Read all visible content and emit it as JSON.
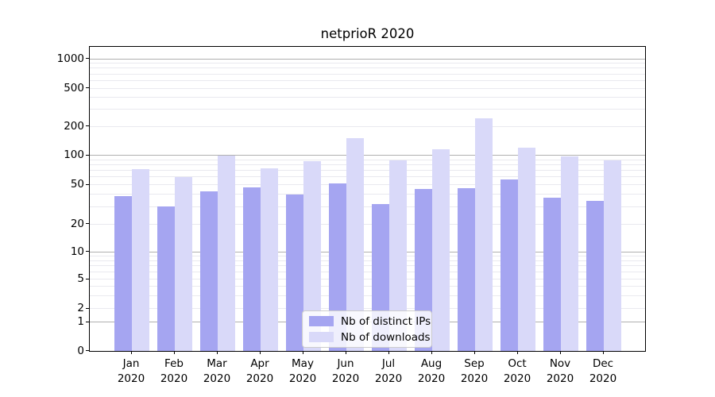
{
  "title": "netprioR 2020",
  "chart_data": {
    "type": "bar",
    "title": "netprioR 2020",
    "categories": [
      "Jan",
      "Feb",
      "Mar",
      "Apr",
      "May",
      "Jun",
      "Jul",
      "Aug",
      "Sep",
      "Oct",
      "Nov",
      "Dec"
    ],
    "category_year": "2020",
    "series": [
      {
        "name": "Nb of distinct IPs",
        "color": "#a5a5f1",
        "values": [
          38,
          30,
          43,
          47,
          40,
          51,
          32,
          45,
          46,
          57,
          37,
          34
        ]
      },
      {
        "name": "Nb of downloads",
        "color": "#d9d9f9",
        "values": [
          72,
          60,
          100,
          74,
          87,
          150,
          88,
          115,
          240,
          120,
          98,
          89
        ]
      }
    ],
    "xlabel": "",
    "ylabel": "",
    "yscale": "symlog",
    "yticks": [
      0,
      1,
      2,
      5,
      10,
      20,
      50,
      100,
      200,
      500,
      1000
    ],
    "ylim": [
      0,
      1320
    ],
    "grid": true,
    "legend_position": "lower center",
    "bar_group_width": 0.8
  },
  "legend": {
    "items": [
      {
        "label": "Nb of distinct IPs",
        "color": "#a5a5f1"
      },
      {
        "label": "Nb of downloads",
        "color": "#d9d9f9"
      }
    ]
  },
  "colors": {
    "background": "#ffffff",
    "spine": "#000000",
    "grid_major": "#b0b0b0",
    "grid_minor": "#e9e9ef",
    "bar_dark": "#a5a5f1",
    "bar_light": "#d9d9f9"
  }
}
